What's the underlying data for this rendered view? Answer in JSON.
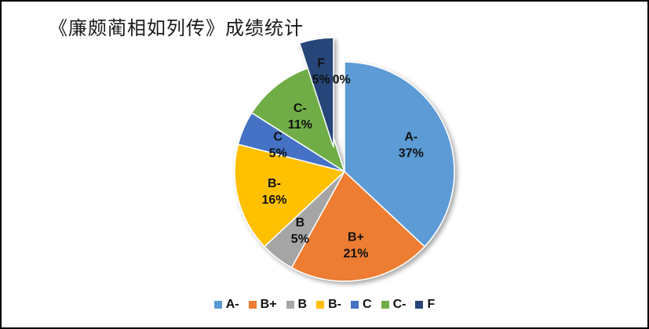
{
  "chart_data": {
    "type": "pie",
    "title": "《廉颇蔺相如列传》成绩统计",
    "categories": [
      "A-",
      "B+",
      "B",
      "B-",
      "C",
      "C-",
      "F"
    ],
    "values": [
      37,
      21,
      5,
      16,
      5,
      11,
      5
    ],
    "labels": [
      "37%",
      "21%",
      "5%",
      "16%",
      "5%",
      "11%",
      "5%"
    ],
    "extra_label": "0%",
    "exploded": "F",
    "colors": [
      "#5B9BD5",
      "#ED7D31",
      "#A5A5A5",
      "#FFC000",
      "#4472C4",
      "#70AD47",
      "#264478"
    ],
    "legend_position": "bottom"
  }
}
